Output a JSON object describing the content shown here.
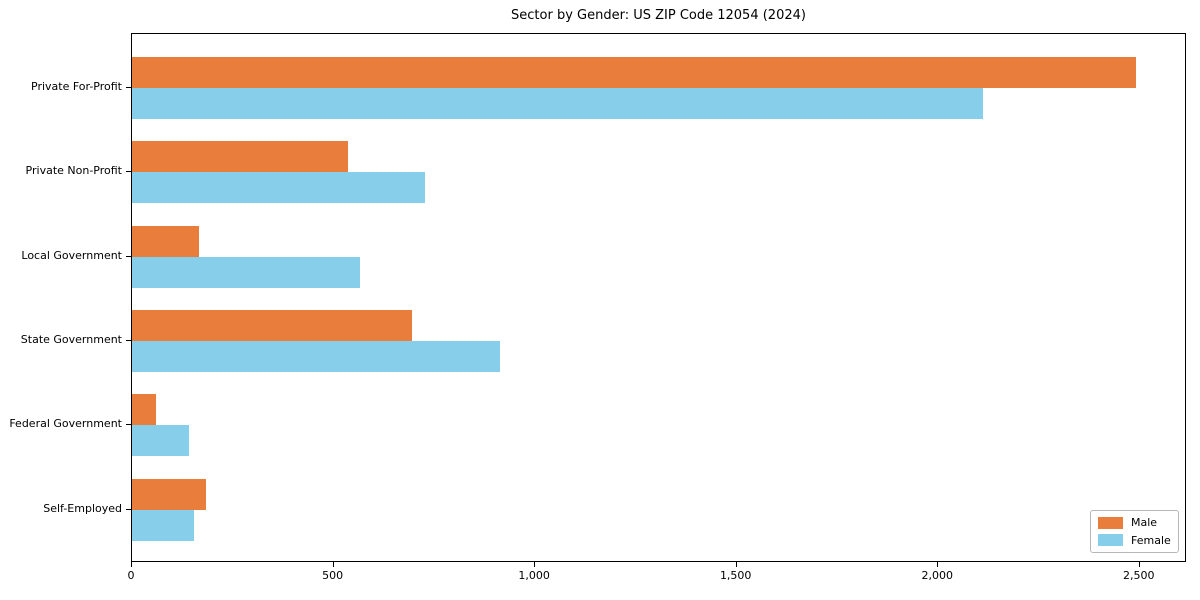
{
  "title": "Sector by Gender: US ZIP Code 12054 (2024)",
  "chart_data": {
    "type": "bar",
    "orientation": "horizontal",
    "title": "Sector by Gender: US ZIP Code 12054 (2024)",
    "xlabel": "",
    "ylabel": "",
    "categories": [
      "Private For-Profit",
      "Private Non-Profit",
      "Local Government",
      "State Government",
      "Federal Government",
      "Self-Employed"
    ],
    "series": [
      {
        "name": "Male",
        "color": "#e87d3c",
        "values": [
          2490,
          535,
          166,
          694,
          60,
          184
        ]
      },
      {
        "name": "Female",
        "color": "#87ceeb",
        "values": [
          2110,
          727,
          566,
          913,
          141,
          154
        ]
      }
    ],
    "xlim": [
      0,
      2617
    ],
    "xticks": [
      0,
      500,
      1000,
      1500,
      2000,
      2500
    ],
    "xtick_labels": [
      "0",
      "500",
      "1,000",
      "1,500",
      "2,000",
      "2,500"
    ],
    "grid": false,
    "legend": {
      "position": "lower right",
      "entries": [
        {
          "label": "Male",
          "color": "#e87d3c"
        },
        {
          "label": "Female",
          "color": "#87ceeb"
        }
      ]
    },
    "colors": {
      "male": "#e87d3c",
      "female": "#87ceeb",
      "background": "#ffffff",
      "spine": "#000000"
    }
  }
}
